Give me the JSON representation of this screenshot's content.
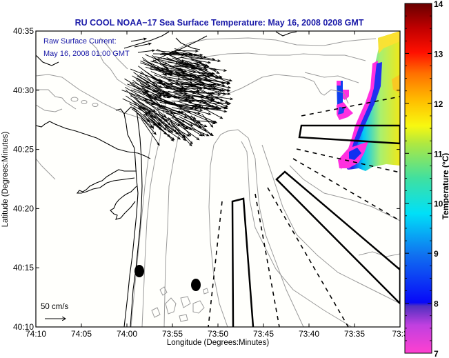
{
  "title": "RU COOL  NOAA−17  Sea Surface Temperature:  May 16, 2008 0208 GMT",
  "annotation": {
    "line1": "Raw Surface Current:",
    "line2": "May 16, 2008 01:00 GMT"
  },
  "scale_label": "50 cm/s",
  "map": {
    "x_axis": {
      "label": "Longitude (Degrees:Minutes)",
      "ticks": [
        "74:10",
        "74:05",
        "74:00",
        "73:55",
        "73:50",
        "73:45",
        "73:40",
        "73:35",
        "73:3"
      ]
    },
    "y_axis": {
      "label": "Latitude (Degrees:Minutes)",
      "ticks": [
        "40:10",
        "40:15",
        "40:20",
        "40:25",
        "40:30",
        "40:35"
      ]
    },
    "colors": {
      "coastline": "#000000",
      "bathymetry": "#999999",
      "title": "#1a1aa8"
    }
  },
  "colorbar": {
    "label": "Temperature (°C)",
    "min": 7,
    "max": 14,
    "ticks": [
      "7",
      "8",
      "9",
      "10",
      "11",
      "12",
      "13",
      "14"
    ],
    "stops": [
      "#ff3fd0",
      "#d040e0",
      "#6030c0",
      "#0a0af0",
      "#1080f0",
      "#00e8f0",
      "#60e890",
      "#d8f020",
      "#ffd000",
      "#ff8000",
      "#ff2000",
      "#c00000",
      "#700000"
    ]
  }
}
